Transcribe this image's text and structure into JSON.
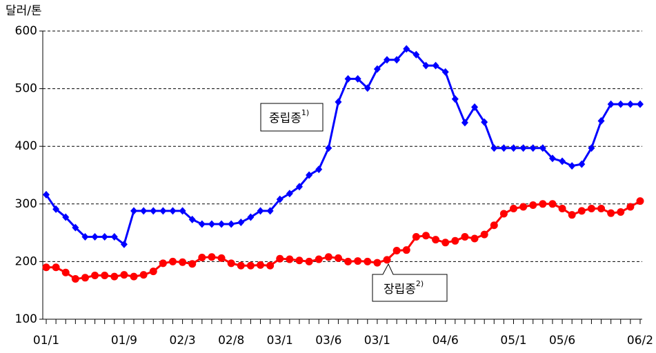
{
  "chart_data": {
    "type": "line",
    "y_label": "달러/톤",
    "categories": [
      "01/1",
      null,
      null,
      null,
      null,
      null,
      null,
      null,
      "01/9",
      null,
      null,
      null,
      null,
      null,
      "02/3",
      null,
      null,
      null,
      null,
      "02/8",
      null,
      null,
      null,
      null,
      "03/1",
      null,
      null,
      null,
      null,
      "03/6",
      null,
      null,
      null,
      null,
      "03/1",
      null,
      null,
      null,
      null,
      null,
      null,
      "04/6",
      null,
      null,
      null,
      null,
      null,
      null,
      "05/1",
      null,
      null,
      null,
      null,
      "05/6",
      null,
      null,
      null,
      null,
      null,
      null,
      null,
      "06/2"
    ],
    "series": [
      {
        "name": "중립종",
        "note": "1)",
        "color": "#0000ff",
        "marker": "diamond",
        "values": [
          316,
          291,
          277,
          259,
          243,
          243,
          243,
          243,
          230,
          288,
          288,
          288,
          288,
          288,
          288,
          273,
          265,
          265,
          265,
          265,
          268,
          277,
          288,
          288,
          308,
          318,
          330,
          350,
          360,
          397,
          477,
          517,
          517,
          501,
          534,
          550,
          550,
          569,
          559,
          540,
          540,
          529,
          482,
          441,
          468,
          442,
          397,
          397,
          397,
          397,
          397,
          397,
          379,
          374,
          366,
          369,
          397,
          444,
          473,
          473,
          473,
          473
        ]
      },
      {
        "name": "장립종",
        "note": "2)",
        "color": "#ff0000",
        "marker": "circle",
        "values": [
          190,
          190,
          181,
          170,
          172,
          176,
          176,
          174,
          177,
          174,
          177,
          183,
          197,
          200,
          199,
          196,
          207,
          208,
          206,
          197,
          193,
          193,
          194,
          193,
          205,
          204,
          202,
          200,
          204,
          208,
          206,
          200,
          201,
          200,
          198,
          203,
          219,
          220,
          243,
          245,
          238,
          233,
          236,
          243,
          240,
          247,
          263,
          283,
          292,
          295,
          298,
          300,
          300,
          292,
          281,
          288,
          292,
          292,
          284,
          286,
          295,
          305
        ]
      }
    ],
    "ylim": [
      100,
      600
    ],
    "yticks": [
      100,
      200,
      300,
      400,
      500,
      600
    ],
    "grid": true
  }
}
